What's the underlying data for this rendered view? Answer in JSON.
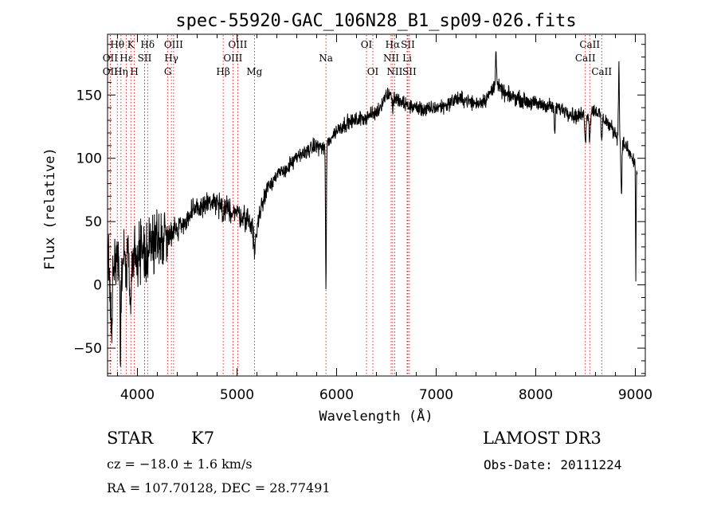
{
  "chart_data": {
    "type": "line",
    "title": "spec-55920-GAC_106N28_B1_sp09-026.fits",
    "xlabel": "Wavelength (Å)",
    "ylabel": "Flux (relative)",
    "xlim": [
      3700,
      9100
    ],
    "ylim": [
      -72,
      198
    ],
    "xticks": [
      4000,
      5000,
      6000,
      7000,
      8000,
      9000
    ],
    "yticks": [
      -50,
      0,
      50,
      100,
      150
    ],
    "grid": false,
    "line_color": "#000000",
    "marker_color": "#cc0000",
    "spectrum_knots": {
      "x": [
        3700,
        3800,
        3900,
        4000,
        4100,
        4200,
        4300,
        4400,
        4500,
        4600,
        4700,
        4800,
        4900,
        5000,
        5100,
        5200,
        5300,
        5400,
        5500,
        5600,
        5700,
        5800,
        5880,
        5960,
        6000,
        6100,
        6200,
        6300,
        6400,
        6500,
        6560,
        6600,
        6700,
        6800,
        6900,
        7000,
        7100,
        7200,
        7300,
        7400,
        7500,
        7600,
        7700,
        7800,
        7900,
        8000,
        8100,
        8200,
        8300,
        8400,
        8500,
        8600,
        8700,
        8800,
        8900,
        9000,
        9020
      ],
      "y": [
        15,
        18,
        20,
        22,
        28,
        36,
        40,
        45,
        52,
        60,
        65,
        64,
        60,
        57,
        52,
        46,
        78,
        86,
        92,
        100,
        106,
        110,
        108,
        118,
        122,
        128,
        130,
        133,
        136,
        150,
        152,
        146,
        142,
        140,
        138,
        140,
        142,
        147,
        146,
        143,
        147,
        158,
        150,
        148,
        145,
        143,
        142,
        140,
        138,
        133,
        135,
        138,
        130,
        120,
        110,
        95,
        88
      ]
    },
    "spectrum_noise": [
      {
        "upto": 4300,
        "amp": 20
      },
      {
        "upto": 5300,
        "amp": 8
      },
      {
        "upto": 9100,
        "amp": 5
      }
    ],
    "spectrum_features": [
      {
        "x": 3740,
        "depth": -55,
        "width": 10
      },
      {
        "x": 3830,
        "depth": -60,
        "width": 8
      },
      {
        "x": 3930,
        "depth": -40,
        "width": 10
      },
      {
        "x": 4861,
        "depth": -12,
        "width": 12
      },
      {
        "x": 5175,
        "depth": -18,
        "width": 18
      },
      {
        "x": 5893,
        "depth": -110,
        "width": 6
      },
      {
        "x": 6563,
        "depth": -12,
        "width": 10
      },
      {
        "x": 7600,
        "depth": 28,
        "width": 8
      },
      {
        "x": 8190,
        "depth": -20,
        "width": 8
      },
      {
        "x": 8500,
        "depth": -20,
        "width": 10
      },
      {
        "x": 8542,
        "depth": -22,
        "width": 8
      },
      {
        "x": 8662,
        "depth": -20,
        "width": 8
      },
      {
        "x": 8835,
        "depth": 60,
        "width": 6
      },
      {
        "x": 8860,
        "depth": -40,
        "width": 8
      },
      {
        "x": 9005,
        "depth": -90,
        "width": 4
      }
    ],
    "lines": [
      {
        "label": "Hθ",
        "x": 3798,
        "row": 0
      },
      {
        "label": "OII",
        "x": 3727,
        "row": 1
      },
      {
        "label": "OII",
        "x": 3727,
        "row": 2
      },
      {
        "label": "K",
        "x": 3934,
        "row": 0
      },
      {
        "label": "Hε",
        "x": 3889,
        "row": 1
      },
      {
        "label": "Hη",
        "x": 3835,
        "row": 2
      },
      {
        "label": "Hδ",
        "x": 4102,
        "row": 0
      },
      {
        "label": "SII",
        "x": 4072,
        "row": 1
      },
      {
        "label": "H",
        "x": 3969,
        "row": 2
      },
      {
        "label": "OIII",
        "x": 4363,
        "row": 0
      },
      {
        "label": "Hγ",
        "x": 4341,
        "row": 1
      },
      {
        "label": "G",
        "x": 4305,
        "row": 2
      },
      {
        "label": "OIII",
        "x": 5007,
        "row": 0
      },
      {
        "label": "OIII",
        "x": 4959,
        "row": 1
      },
      {
        "label": "Hβ",
        "x": 4861,
        "row": 2
      },
      {
        "label": "Mg",
        "x": 5175,
        "row": 2
      },
      {
        "label": "Na",
        "x": 5893,
        "row": 1
      },
      {
        "label": "OI",
        "x": 6300,
        "row": 0
      },
      {
        "label": "OI",
        "x": 6364,
        "row": 2
      },
      {
        "label": "Hα",
        "x": 6563,
        "row": 0
      },
      {
        "label": "NII",
        "x": 6548,
        "row": 1
      },
      {
        "label": "NII",
        "x": 6583,
        "row": 2
      },
      {
        "label": "SII",
        "x": 6716,
        "row": 0
      },
      {
        "label": "Li",
        "x": 6708,
        "row": 1
      },
      {
        "label": "SII",
        "x": 6731,
        "row": 2
      },
      {
        "label": "CaII",
        "x": 8542,
        "row": 0
      },
      {
        "label": "CaII",
        "x": 8498,
        "row": 1
      },
      {
        "label": "CaII",
        "x": 8662,
        "row": 2
      }
    ]
  },
  "info": {
    "class": "STAR",
    "subclass": "K7",
    "survey": "LAMOST DR3",
    "cz": "cz = −18.0 ± 1.6 km/s",
    "obs_date": "Obs-Date: 20111224",
    "coords": "RA = 107.70128, DEC =  28.77491"
  }
}
